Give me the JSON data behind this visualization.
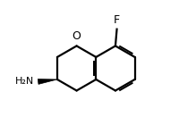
{
  "bg_color": "#ffffff",
  "line_color": "#000000",
  "line_width": 1.6,
  "bond_color": "#000000",
  "text_color": "#000000",
  "label_F": "F",
  "label_O": "O",
  "label_NH2": "H₂N",
  "figsize": [
    2.0,
    1.4
  ],
  "dpi": 100
}
